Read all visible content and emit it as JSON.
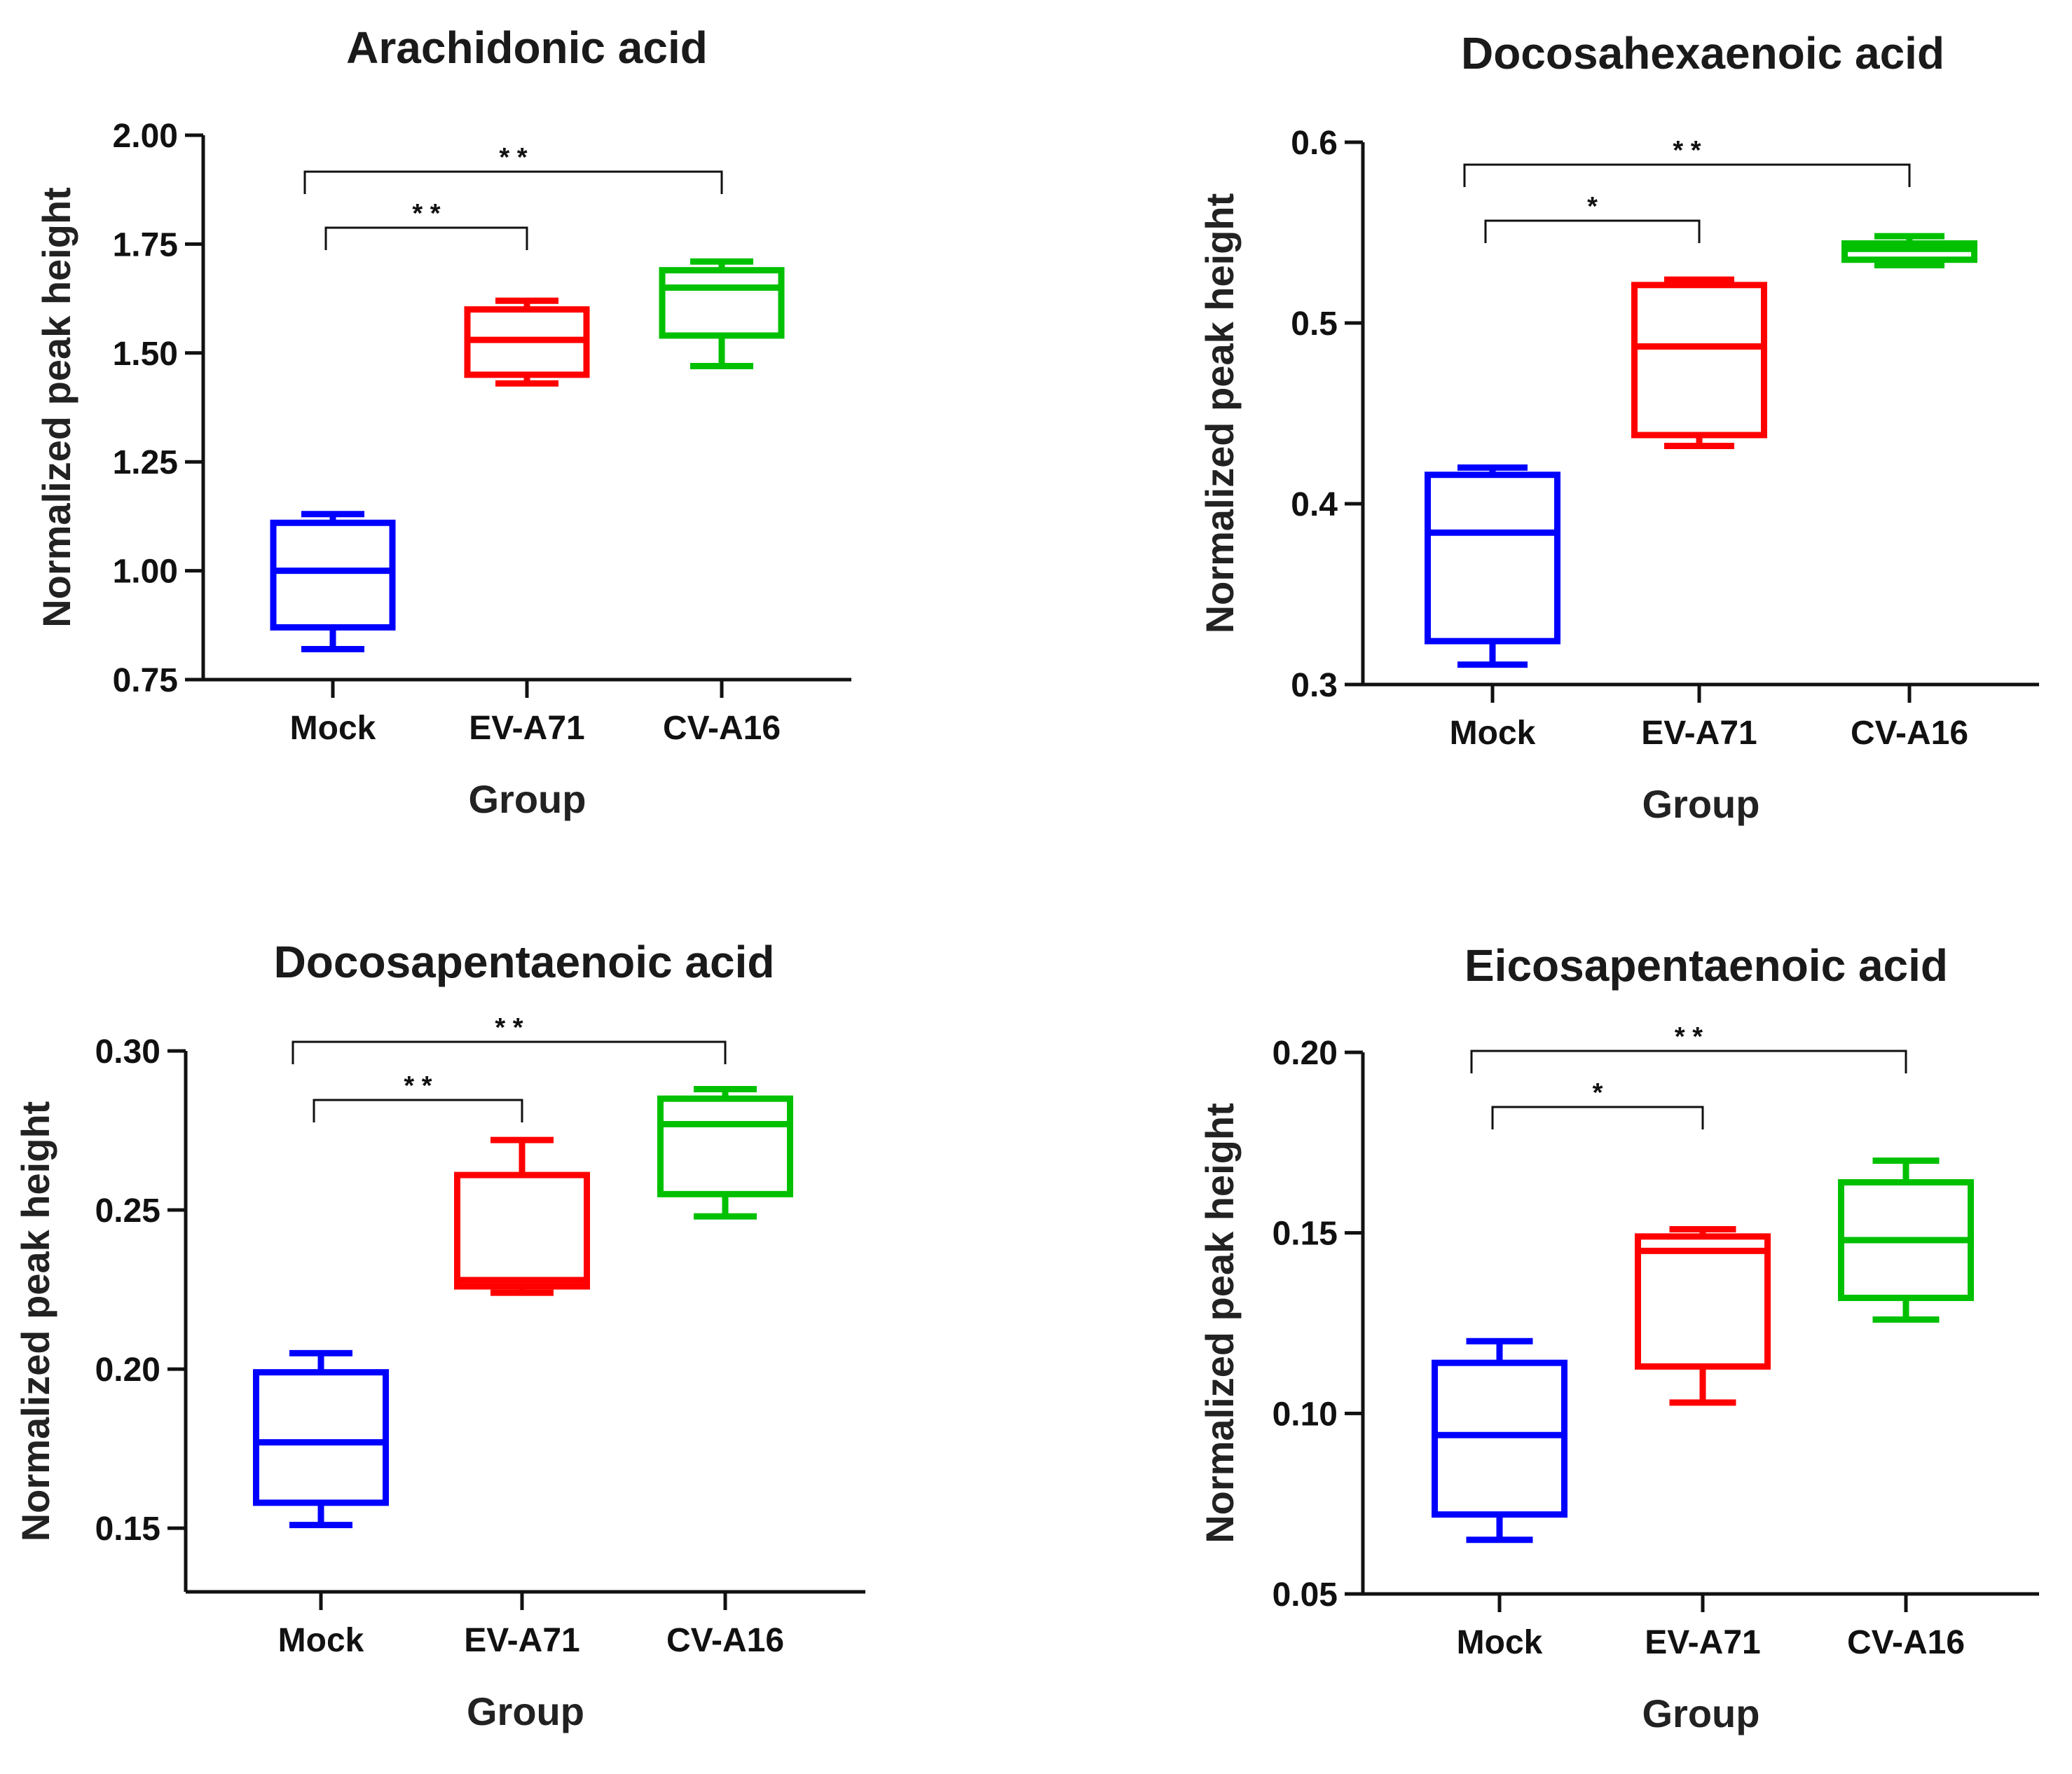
{
  "chart_data": [
    {
      "type": "boxplot",
      "title": "Arachidonic acid",
      "xlabel": "Group",
      "ylabel": "Normalized peak height",
      "ylim": [
        0.75,
        2.0
      ],
      "yticks": [
        "0.75",
        "1.00",
        "1.25",
        "1.50",
        "1.75",
        "2.00"
      ],
      "categories": [
        "Mock",
        "EV-A71",
        "CV-A16"
      ],
      "series": [
        {
          "name": "Mock",
          "color": "#0000ff",
          "min": 0.82,
          "q1": 0.87,
          "median": 1.0,
          "q3": 1.11,
          "max": 1.13
        },
        {
          "name": "EV-A71",
          "color": "#ff0000",
          "min": 1.43,
          "q1": 1.45,
          "median": 1.53,
          "q3": 1.6,
          "max": 1.62
        },
        {
          "name": "CV-A16",
          "color": "#00c000",
          "min": 1.47,
          "q1": 1.54,
          "median": 1.65,
          "q3": 1.69,
          "max": 1.71
        }
      ],
      "annotations": [
        {
          "from": "Mock",
          "to": "EV-A71",
          "label": "* *",
          "level": 1
        },
        {
          "from": "Mock",
          "to": "CV-A16",
          "label": "* *",
          "level": 2
        }
      ]
    },
    {
      "type": "boxplot",
      "title": "Docosahexaenoic acid",
      "xlabel": "Group",
      "ylabel": "Normalized peak height",
      "ylim": [
        0.3,
        0.6
      ],
      "yticks": [
        "0.3",
        "0.4",
        "0.5",
        "0.6"
      ],
      "categories": [
        "Mock",
        "EV-A71",
        "CV-A16"
      ],
      "series": [
        {
          "name": "Mock",
          "color": "#0000ff",
          "min": 0.311,
          "q1": 0.324,
          "median": 0.384,
          "q3": 0.416,
          "max": 0.42
        },
        {
          "name": "EV-A71",
          "color": "#ff0000",
          "min": 0.432,
          "q1": 0.438,
          "median": 0.487,
          "q3": 0.521,
          "max": 0.524
        },
        {
          "name": "CV-A16",
          "color": "#00c000",
          "min": 0.532,
          "q1": 0.535,
          "median": 0.541,
          "q3": 0.544,
          "max": 0.548
        }
      ],
      "annotations": [
        {
          "from": "Mock",
          "to": "EV-A71",
          "label": "*",
          "level": 1
        },
        {
          "from": "Mock",
          "to": "CV-A16",
          "label": "* *",
          "level": 2
        }
      ]
    },
    {
      "type": "boxplot",
      "title": "Docosapentaenoic acid",
      "xlabel": "Group",
      "ylabel": "Normalized peak height",
      "ylim": [
        0.13,
        0.3
      ],
      "yticks": [
        "0.15",
        "0.20",
        "0.25",
        "0.30"
      ],
      "categories": [
        "Mock",
        "EV-A71",
        "CV-A16"
      ],
      "series": [
        {
          "name": "Mock",
          "color": "#0000ff",
          "min": 0.151,
          "q1": 0.158,
          "median": 0.177,
          "q3": 0.199,
          "max": 0.205
        },
        {
          "name": "EV-A71",
          "color": "#ff0000",
          "min": 0.224,
          "q1": 0.226,
          "median": 0.228,
          "q3": 0.261,
          "max": 0.272
        },
        {
          "name": "CV-A16",
          "color": "#00c000",
          "min": 0.248,
          "q1": 0.255,
          "median": 0.277,
          "q3": 0.285,
          "max": 0.288
        }
      ],
      "annotations": [
        {
          "from": "Mock",
          "to": "EV-A71",
          "label": "* *",
          "level": 1
        },
        {
          "from": "Mock",
          "to": "CV-A16",
          "label": "* *",
          "level": 2
        }
      ]
    },
    {
      "type": "boxplot",
      "title": "Eicosapentaenoic acid",
      "xlabel": "Group",
      "ylabel": "Normalized peak height",
      "ylim": [
        0.05,
        0.2
      ],
      "yticks": [
        "0.05",
        "0.10",
        "0.15",
        "0.20"
      ],
      "categories": [
        "Mock",
        "EV-A71",
        "CV-A16"
      ],
      "series": [
        {
          "name": "Mock",
          "color": "#0000ff",
          "min": 0.065,
          "q1": 0.072,
          "median": 0.094,
          "q3": 0.114,
          "max": 0.12
        },
        {
          "name": "EV-A71",
          "color": "#ff0000",
          "min": 0.103,
          "q1": 0.113,
          "median": 0.145,
          "q3": 0.149,
          "max": 0.151
        },
        {
          "name": "CV-A16",
          "color": "#00c000",
          "min": 0.126,
          "q1": 0.132,
          "median": 0.148,
          "q3": 0.164,
          "max": 0.17
        }
      ],
      "annotations": [
        {
          "from": "Mock",
          "to": "EV-A71",
          "label": "*",
          "level": 1
        },
        {
          "from": "Mock",
          "to": "CV-A16",
          "label": "* *",
          "level": 2
        }
      ]
    }
  ]
}
